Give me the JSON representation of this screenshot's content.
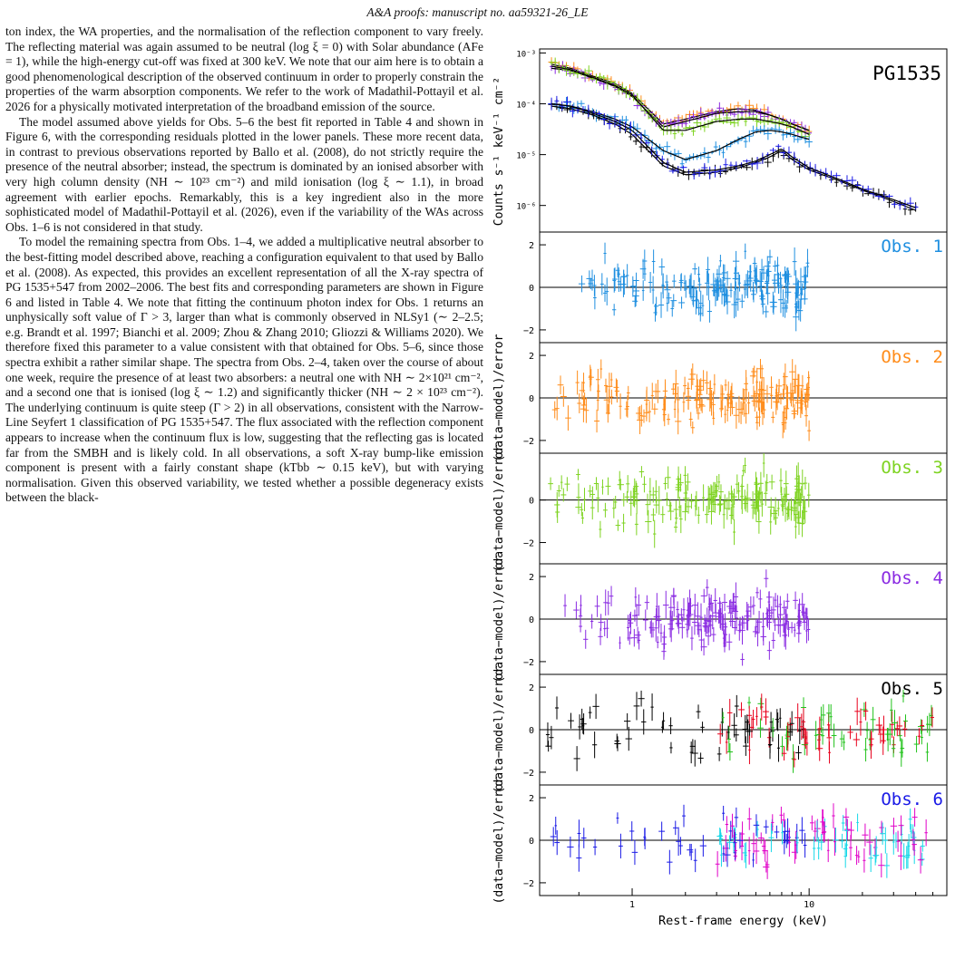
{
  "header": "A&A proofs: manuscript no. aa59321-26_LE",
  "paragraphs": [
    "ton index, the WA properties, and the normalisation of the reflection component to vary freely. The reflecting material was again assumed to be neutral (log ξ = 0) with Solar abundance (AFe = 1), while the high-energy cut-off was fixed at 300 keV. We note that our aim here is to obtain a good phenomenological description of the observed continuum in order to properly constrain the properties of the warm absorption components. We refer to the work of Madathil-Pottayil et al. 2026 for a physically motivated interpretation of the broadband emission of the source.",
    "The model assumed above yields for Obs. 5–6 the best fit reported in Table 4 and shown in Figure 6, with the corresponding residuals plotted in the lower panels. These more recent data, in contrast to previous observations reported by Ballo et al. (2008), do not strictly require the presence of the neutral absorber; instead, the spectrum is dominated by an ionised absorber with very high column density (NH ∼ 10²³ cm⁻²) and mild ionisation (log ξ ∼ 1.1), in broad agreement with earlier epochs. Remarkably, this is a key ingredient also in the more sophisticated model of Madathil-Pottayil et al. (2026), even if the variability of the WAs across Obs. 1–6 is not considered in that study.",
    "To model the remaining spectra from Obs. 1–4, we added a multiplicative neutral absorber to the best-fitting model described above, reaching a configuration equivalent to that used by Ballo et al. (2008). As expected, this provides an excellent representation of all the X-ray spectra of PG 1535+547 from 2002–2006. The best fits and corresponding parameters are shown in Figure 6 and listed in Table 4. We note that fitting the continuum photon index for Obs. 1 returns an unphysically soft value of Γ > 3, larger than what is commonly observed in NLSy1 (∼ 2–2.5; e.g. Brandt et al. 1997; Bianchi et al. 2009; Zhou & Zhang 2010; Gliozzi & Williams 2020). We therefore fixed this parameter to a value consistent with that obtained for Obs. 5–6, since those spectra exhibit a rather similar shape. The spectra from Obs. 2–4, taken over the course of about one week, require the presence of at least two absorbers: a neutral one with NH ∼ 2×10²¹ cm⁻², and a second one that is ionised (log ξ ∼ 1.2) and significantly thicker (NH ∼ 2 × 10²³ cm⁻²). The underlying continuum is quite steep (Γ > 2) in all observations, consistent with the Narrow-Line Seyfert 1 classification of PG 1535+547. The flux associated with the reflection component appears to increase when the continuum flux is low, suggesting that the reflecting gas is located far from the SMBH and is likely cold. In all observations, a soft X-ray bump-like emission component is present with a fairly constant shape (kTbb ∼ 0.15 keV), but with varying normalisation. Given this observed variability, we tested whether a possible degeneracy exists between the black-"
  ],
  "chart_data": {
    "type": "scatter",
    "xlabel": "Rest-frame energy (keV)",
    "x_scale": "log",
    "xlim": [
      0.3,
      60
    ],
    "x_ticks": [
      "1",
      "10"
    ],
    "colors": {
      "obs1": "#1f8fe0",
      "obs2": "#ff8c1a",
      "obs3": "#7ed321",
      "obs4": "#8a2be2",
      "obs5_black": "#000000",
      "obs5_red": "#e8001c",
      "obs5_green": "#21c21b",
      "obs6_blue": "#1a1ae6",
      "obs6_magenta": "#e000c8",
      "obs6_cyan": "#16d8e8"
    },
    "top_panel": {
      "label": "PG1535",
      "ylabel": "Counts s⁻¹ keV⁻¹ cm⁻²",
      "y_scale": "log",
      "ylim": [
        3e-07,
        0.0012
      ],
      "y_ticks": [
        "10⁻³",
        "10⁻⁴",
        "10⁻⁵",
        "10⁻⁶"
      ],
      "series": [
        {
          "obs": "2",
          "color": "#ff8c1a",
          "x": [
            0.35,
            0.45,
            0.6,
            0.8,
            1.0,
            1.5,
            2,
            3,
            4,
            5,
            6,
            7,
            8,
            10
          ],
          "y": [
            0.0006,
            0.0005,
            0.00035,
            0.00025,
            0.00016,
            4e-05,
            5e-05,
            7e-05,
            8e-05,
            7.5e-05,
            6e-05,
            5e-05,
            4e-05,
            3e-05
          ]
        },
        {
          "obs": "4",
          "color": "#8a2be2",
          "x": [
            0.35,
            0.45,
            0.6,
            0.8,
            1.0,
            1.5,
            2,
            3,
            4,
            5,
            6,
            7,
            8,
            10
          ],
          "y": [
            0.0005,
            0.00045,
            0.00032,
            0.00022,
            0.00014,
            3.5e-05,
            4.5e-05,
            6.5e-05,
            7e-05,
            7e-05,
            6e-05,
            5e-05,
            4e-05,
            3e-05
          ]
        },
        {
          "obs": "3",
          "color": "#7ed321",
          "x": [
            0.35,
            0.45,
            0.6,
            0.8,
            1.0,
            1.5,
            2,
            3,
            4,
            5,
            6,
            7,
            8,
            10
          ],
          "y": [
            0.00055,
            0.00047,
            0.00033,
            0.00023,
            0.00015,
            3e-05,
            3e-05,
            4.5e-05,
            5e-05,
            5e-05,
            4.5e-05,
            4e-05,
            3.5e-05,
            2.5e-05
          ]
        },
        {
          "obs": "1",
          "color": "#1f8fe0",
          "x": [
            0.35,
            0.45,
            0.6,
            0.8,
            1.0,
            1.5,
            2,
            3,
            4,
            5,
            6,
            7,
            8,
            10
          ],
          "y": [
            0.0001,
            9e-05,
            7e-05,
            5e-05,
            3.5e-05,
            1.2e-05,
            8e-06,
            1.2e-05,
            2e-05,
            2.8e-05,
            3e-05,
            2.8e-05,
            2.5e-05,
            2e-05
          ]
        },
        {
          "obs": "5",
          "color": "#000000",
          "x": [
            0.35,
            0.45,
            0.6,
            0.8,
            1.0,
            1.5,
            2,
            3,
            4,
            5,
            6,
            7,
            8,
            10,
            15,
            20,
            30,
            40
          ],
          "y": [
            9e-05,
            8e-05,
            6e-05,
            4e-05,
            2.5e-05,
            6e-06,
            4e-06,
            4.5e-06,
            5.5e-06,
            7e-06,
            9e-06,
            1.2e-05,
            8e-06,
            5e-06,
            3e-06,
            2e-06,
            1.2e-06,
            8e-07
          ]
        },
        {
          "obs": "6",
          "color": "#1a1ae6",
          "x": [
            0.35,
            0.45,
            0.6,
            0.8,
            1.0,
            1.5,
            2,
            3,
            4,
            5,
            6,
            7,
            8,
            10,
            15,
            20,
            30,
            40
          ],
          "y": [
            0.0001,
            9e-05,
            6.5e-05,
            4.5e-05,
            3e-05,
            7e-06,
            4.5e-06,
            5e-06,
            6e-06,
            7.5e-06,
            1e-05,
            1.3e-05,
            9e-06,
            5.5e-06,
            3.2e-06,
            2.1e-06,
            1.3e-06,
            9e-07
          ]
        }
      ]
    },
    "residual_panels": [
      {
        "label": "Obs. 1",
        "ylabel": "",
        "colors": [
          "#1f8fe0"
        ],
        "y_ticks": [
          "2",
          "0",
          "−2"
        ],
        "ylim": [
          -2.6,
          2.6
        ],
        "xmax": 10
      },
      {
        "label": "Obs. 2",
        "ylabel": "(data−model)/error",
        "colors": [
          "#ff8c1a"
        ],
        "y_ticks": [
          "2",
          "0",
          "−2"
        ],
        "ylim": [
          -2.6,
          2.6
        ],
        "xmax": 10
      },
      {
        "label": "Obs. 3",
        "ylabel": "(data−model)/error",
        "colors": [
          "#7ed321"
        ],
        "y_ticks": [
          "0",
          "−2"
        ],
        "ylim": [
          -3,
          2.2
        ],
        "xmax": 10
      },
      {
        "label": "Obs. 4",
        "ylabel": "(data−model)/error",
        "colors": [
          "#8a2be2"
        ],
        "y_ticks": [
          "2",
          "0",
          "−2"
        ],
        "ylim": [
          -2.6,
          2.6
        ],
        "xmax": 10
      },
      {
        "label": "Obs. 5",
        "ylabel": "(data−model)/error",
        "colors": [
          "#000000",
          "#e8001c",
          "#21c21b"
        ],
        "y_ticks": [
          "2",
          "0",
          "−2"
        ],
        "ylim": [
          -2.6,
          2.6
        ],
        "xmax": 50
      },
      {
        "label": "Obs. 6",
        "ylabel": "(data−model)/error",
        "colors": [
          "#1a1ae6",
          "#e000c8",
          "#16d8e8"
        ],
        "y_ticks": [
          "2",
          "0",
          "−2"
        ],
        "ylim": [
          -2.6,
          2.6
        ],
        "xmax": 50
      }
    ]
  }
}
